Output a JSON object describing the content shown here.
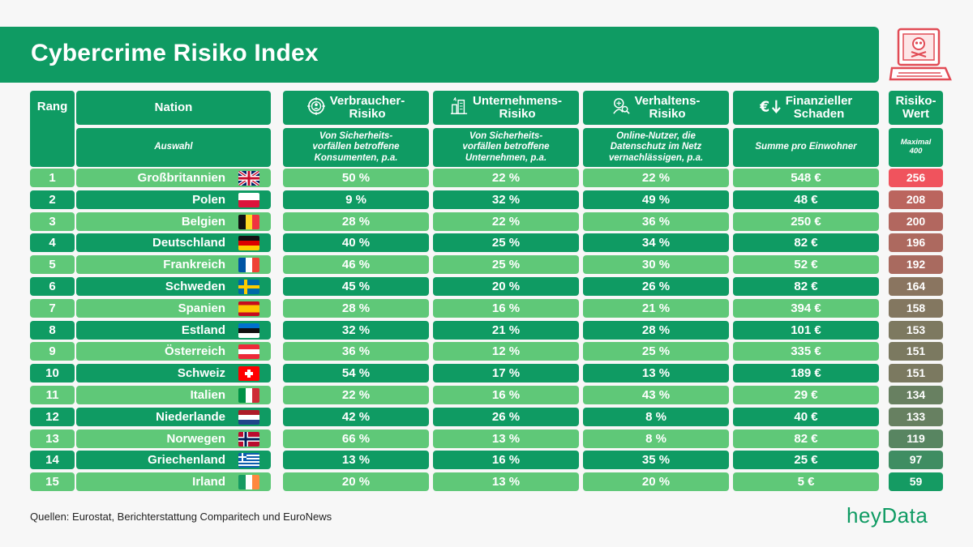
{
  "title": "Cybercrime Risiko Index",
  "headers": {
    "rang": "Rang",
    "nation": "Nation",
    "verbraucher": "Verbraucher-\nRisiko",
    "unternehmen": "Unternehmens-\nRisiko",
    "verhalten": "Verhaltens-\nRisiko",
    "schaden": "Finanzieller\nSchaden",
    "risiko": "Risiko-\nWert"
  },
  "subheaders": {
    "nation": "Auswahl",
    "verbraucher": "Von Sicherheits-\nvorfällen betroffene\nKonsumenten, p.a.",
    "unternehmen": "Von Sicherheits-\nvorfällen betroffene\nUnternehmen, p.a.",
    "verhalten": "Online-Nutzer, die\nDatenschutz im Netz\nvernachlässigen, p.a.",
    "schaden": "Summe pro Einwohner",
    "risiko": "Maximal\n400"
  },
  "icons": {
    "verbraucher": "target-user-icon",
    "unternehmen": "buildings-icon",
    "verhalten": "person-search-icon",
    "schaden": "euro-down-icon",
    "laptop": "laptop-skull-icon"
  },
  "colors": {
    "dark_green": "#0f9b63",
    "light_green": "#5fc878",
    "risk_high": "#f0535d",
    "risk_low": "#159b63"
  },
  "chart_data": {
    "type": "table",
    "title": "Cybercrime Risiko Index",
    "columns": [
      "Rang",
      "Nation",
      "Verbraucher-Risiko",
      "Unternehmens-Risiko",
      "Verhaltens-Risiko",
      "Finanzieller Schaden",
      "Risiko-Wert"
    ],
    "rows": [
      {
        "rank": "1",
        "nation": "Großbritannien",
        "flag": "gb",
        "verbraucher": "50 %",
        "unternehmen": "22 %",
        "verhalten": "22 %",
        "schaden": "548 €",
        "risiko": 256
      },
      {
        "rank": "2",
        "nation": "Polen",
        "flag": "pl",
        "verbraucher": "9 %",
        "unternehmen": "32 %",
        "verhalten": "49 %",
        "schaden": "48 €",
        "risiko": 208
      },
      {
        "rank": "3",
        "nation": "Belgien",
        "flag": "be",
        "verbraucher": "28 %",
        "unternehmen": "22 %",
        "verhalten": "36 %",
        "schaden": "250 €",
        "risiko": 200
      },
      {
        "rank": "4",
        "nation": "Deutschland",
        "flag": "de",
        "verbraucher": "40 %",
        "unternehmen": "25 %",
        "verhalten": "34 %",
        "schaden": "82 €",
        "risiko": 196
      },
      {
        "rank": "5",
        "nation": "Frankreich",
        "flag": "fr",
        "verbraucher": "46 %",
        "unternehmen": "25 %",
        "verhalten": "30 %",
        "schaden": "52 €",
        "risiko": 192
      },
      {
        "rank": "6",
        "nation": "Schweden",
        "flag": "se",
        "verbraucher": "45 %",
        "unternehmen": "20 %",
        "verhalten": "26 %",
        "schaden": "82 €",
        "risiko": 164
      },
      {
        "rank": "7",
        "nation": "Spanien",
        "flag": "es",
        "verbraucher": "28 %",
        "unternehmen": "16 %",
        "verhalten": "21 %",
        "schaden": "394 €",
        "risiko": 158
      },
      {
        "rank": "8",
        "nation": "Estland",
        "flag": "ee",
        "verbraucher": "32 %",
        "unternehmen": "21 %",
        "verhalten": "28 %",
        "schaden": "101 €",
        "risiko": 153
      },
      {
        "rank": "9",
        "nation": "Österreich",
        "flag": "at",
        "verbraucher": "36 %",
        "unternehmen": "12 %",
        "verhalten": "25 %",
        "schaden": "335 €",
        "risiko": 151
      },
      {
        "rank": "10",
        "nation": "Schweiz",
        "flag": "ch",
        "verbraucher": "54 %",
        "unternehmen": "17 %",
        "verhalten": "13 %",
        "schaden": "189 €",
        "risiko": 151
      },
      {
        "rank": "11",
        "nation": "Italien",
        "flag": "it",
        "verbraucher": "22 %",
        "unternehmen": "16 %",
        "verhalten": "43 %",
        "schaden": "29 €",
        "risiko": 134
      },
      {
        "rank": "12",
        "nation": "Niederlande",
        "flag": "nl",
        "verbraucher": "42 %",
        "unternehmen": "26 %",
        "verhalten": "8 %",
        "schaden": "40 €",
        "risiko": 133
      },
      {
        "rank": "13",
        "nation": "Norwegen",
        "flag": "no",
        "verbraucher": "66 %",
        "unternehmen": "13 %",
        "verhalten": "8 %",
        "schaden": "82 €",
        "risiko": 119
      },
      {
        "rank": "14",
        "nation": "Griechenland",
        "flag": "gr",
        "verbraucher": "13 %",
        "unternehmen": "16 %",
        "verhalten": "35 %",
        "schaden": "25 €",
        "risiko": 97
      },
      {
        "rank": "15",
        "nation": "Irland",
        "flag": "ie",
        "verbraucher": "20 %",
        "unternehmen": "13 %",
        "verhalten": "20 %",
        "schaden": "5 €",
        "risiko": 59
      }
    ]
  },
  "footer": {
    "sources": "Quellen: Eurostat, Berichterstattung Comparitech und EuroNews",
    "logo": "heyData"
  }
}
